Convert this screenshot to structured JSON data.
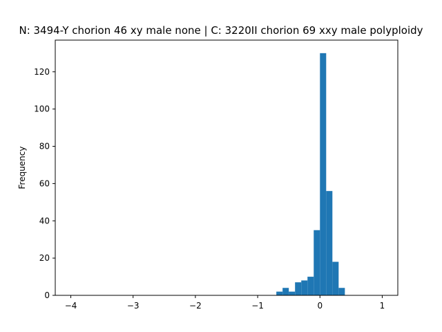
{
  "chart_data": {
    "type": "bar",
    "title": "N: 3494-Y chorion 46 xy male none | C: 3220II chorion 69 xxy male polyploidy",
    "xlabel": "",
    "ylabel": "Frequency",
    "xlim": [
      -4.25,
      1.25
    ],
    "ylim": [
      0,
      137
    ],
    "x_ticks": [
      -4,
      -3,
      -2,
      -1,
      0,
      1
    ],
    "x_tick_labels": [
      "−4",
      "−3",
      "−2",
      "−1",
      "0",
      "1"
    ],
    "y_ticks": [
      0,
      20,
      40,
      60,
      80,
      100,
      120
    ],
    "y_tick_labels": [
      "0",
      "20",
      "40",
      "60",
      "80",
      "100",
      "120"
    ],
    "bin_width": 0.1,
    "bins": [
      {
        "left": -0.7,
        "right": -0.6,
        "count": 2
      },
      {
        "left": -0.6,
        "right": -0.5,
        "count": 4
      },
      {
        "left": -0.5,
        "right": -0.4,
        "count": 2
      },
      {
        "left": -0.4,
        "right": -0.3,
        "count": 7
      },
      {
        "left": -0.3,
        "right": -0.2,
        "count": 8
      },
      {
        "left": -0.2,
        "right": -0.1,
        "count": 10
      },
      {
        "left": -0.1,
        "right": 0.0,
        "count": 35
      },
      {
        "left": 0.0,
        "right": 0.1,
        "count": 130
      },
      {
        "left": 0.1,
        "right": 0.2,
        "count": 56
      },
      {
        "left": 0.2,
        "right": 0.3,
        "count": 18
      },
      {
        "left": 0.3,
        "right": 0.4,
        "count": 4
      }
    ],
    "bar_color": "#1f77b4",
    "grid": false,
    "legend": "none"
  }
}
